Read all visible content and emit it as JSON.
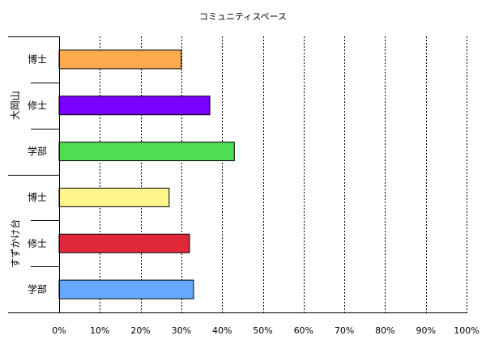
{
  "chart_data": {
    "type": "bar",
    "orientation": "horizontal",
    "title": "コミュニティスペース",
    "xlabel": "",
    "ylabel": "",
    "xlim": [
      0,
      100
    ],
    "x_ticks": [
      "0%",
      "10%",
      "20%",
      "30%",
      "40%",
      "50%",
      "60%",
      "70%",
      "80%",
      "90%",
      "100%"
    ],
    "grid": "vertical dotted",
    "groups": [
      {
        "name": "大岡山",
        "bars": [
          {
            "category": "博士",
            "value": 30,
            "color": "#ffaa4d"
          },
          {
            "category": "修士",
            "value": 37,
            "color": "#7a00ff"
          },
          {
            "category": "学部",
            "value": 43,
            "color": "#4fdd56"
          }
        ]
      },
      {
        "name": "すずかけ台",
        "bars": [
          {
            "category": "博士",
            "value": 27,
            "color": "#fff58c"
          },
          {
            "category": "修士",
            "value": 32,
            "color": "#e0283a"
          },
          {
            "category": "学部",
            "value": 33,
            "color": "#66aaff"
          }
        ]
      }
    ]
  }
}
